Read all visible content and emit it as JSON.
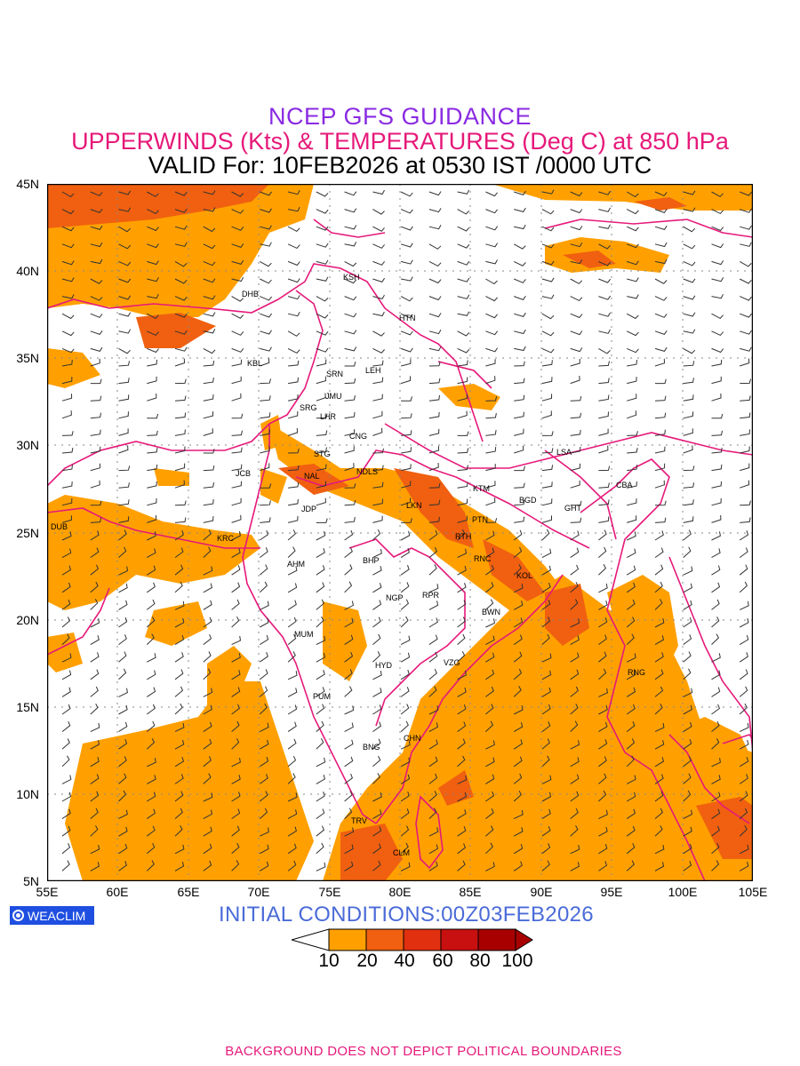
{
  "header": {
    "title": "NCEP GFS GUIDANCE",
    "subtitle": "UPPERWINDS (Kts) & TEMPERATURES (Deg C) at 850 hPa",
    "valid": "VALID For: 10FEB2026 at 0530 IST /0000 UTC"
  },
  "map": {
    "lat_labels": [
      "45N",
      "40N",
      "35N",
      "30N",
      "25N",
      "20N",
      "15N",
      "10N",
      "5N"
    ],
    "lon_labels": [
      "55E",
      "60E",
      "65E",
      "70E",
      "75E",
      "80E",
      "85E",
      "90E",
      "95E",
      "100E",
      "105E"
    ],
    "station_labels": [
      "DHB",
      "KSH",
      "HTN",
      "KBL",
      "SRN",
      "LEH",
      "JMU",
      "SRG",
      "LHR",
      "CNG",
      "STG",
      "LSA",
      "JCB",
      "NAL",
      "NDLS",
      "KTM",
      "CBA",
      "JDP",
      "LKN",
      "BGD",
      "GHT",
      "DUB",
      "KRC",
      "PTN",
      "RTH",
      "AHM",
      "BHP",
      "RNC",
      "KOL",
      "NGP",
      "RPR",
      "BWN",
      "MUM",
      "HYD",
      "VZG",
      "RNG",
      "PUM",
      "CHN",
      "BNG",
      "TRV",
      "CLM"
    ],
    "colors": {
      "shade_10_20": "#ffa000",
      "shade_20_40": "#f06010",
      "boundary": "#e6197a",
      "wind_number": "#2040d0",
      "grid": "#888888"
    }
  },
  "branding": {
    "label": "WEACLIM"
  },
  "initial_conditions": "INITIAL  CONDITIONS:00Z03FEB2026",
  "colorbar": {
    "labels": [
      "10",
      "20",
      "40",
      "60",
      "80",
      "100"
    ],
    "colors": [
      "#ffffff",
      "#ffa000",
      "#f06010",
      "#e03010",
      "#c81010",
      "#a80000",
      "#a80000"
    ]
  },
  "footer": "BACKGROUND DOES NOT DEPICT POLITICAL BOUNDARIES"
}
